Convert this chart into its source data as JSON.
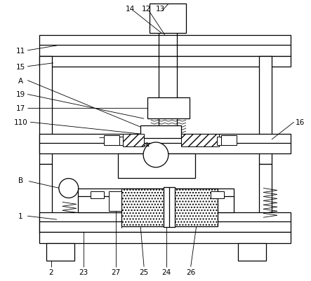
{
  "bg_color": "#ffffff",
  "line_color": "#000000",
  "figsize": [
    4.43,
    4.02
  ],
  "dpi": 100,
  "fs": 7.5
}
